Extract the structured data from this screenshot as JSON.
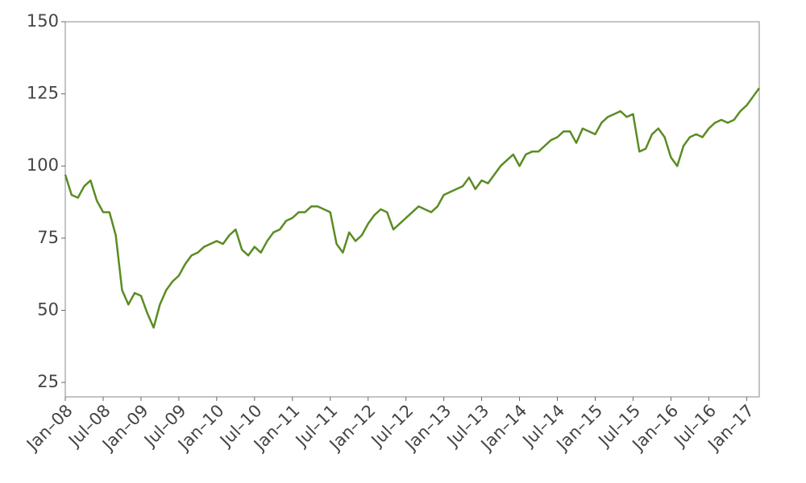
{
  "chart_data": {
    "type": "line",
    "x": [
      "2008-01",
      "2008-02",
      "2008-03",
      "2008-04",
      "2008-05",
      "2008-06",
      "2008-07",
      "2008-08",
      "2008-09",
      "2008-10",
      "2008-11",
      "2008-12",
      "2009-01",
      "2009-02",
      "2009-03",
      "2009-04",
      "2009-05",
      "2009-06",
      "2009-07",
      "2009-08",
      "2009-09",
      "2009-10",
      "2009-11",
      "2009-12",
      "2010-01",
      "2010-02",
      "2010-03",
      "2010-04",
      "2010-05",
      "2010-06",
      "2010-07",
      "2010-08",
      "2010-09",
      "2010-10",
      "2010-11",
      "2010-12",
      "2011-01",
      "2011-02",
      "2011-03",
      "2011-04",
      "2011-05",
      "2011-06",
      "2011-07",
      "2011-08",
      "2011-09",
      "2011-10",
      "2011-11",
      "2011-12",
      "2012-01",
      "2012-02",
      "2012-03",
      "2012-04",
      "2012-05",
      "2012-06",
      "2012-07",
      "2012-08",
      "2012-09",
      "2012-10",
      "2012-11",
      "2012-12",
      "2013-01",
      "2013-02",
      "2013-03",
      "2013-04",
      "2013-05",
      "2013-06",
      "2013-07",
      "2013-08",
      "2013-09",
      "2013-10",
      "2013-11",
      "2013-12",
      "2014-01",
      "2014-02",
      "2014-03",
      "2014-04",
      "2014-05",
      "2014-06",
      "2014-07",
      "2014-08",
      "2014-09",
      "2014-10",
      "2014-11",
      "2014-12",
      "2015-01",
      "2015-02",
      "2015-03",
      "2015-04",
      "2015-05",
      "2015-06",
      "2015-07",
      "2015-08",
      "2015-09",
      "2015-10",
      "2015-11",
      "2015-12",
      "2016-01",
      "2016-02",
      "2016-03",
      "2016-04",
      "2016-05",
      "2016-06",
      "2016-07",
      "2016-08",
      "2016-09",
      "2016-10",
      "2016-11",
      "2016-12",
      "2017-01",
      "2017-02",
      "2017-03"
    ],
    "series": [
      {
        "color": "#5a8c23",
        "values": [
          97,
          90,
          89,
          93,
          95,
          88,
          84,
          84,
          76,
          57,
          52,
          56,
          55,
          49,
          44,
          52,
          57,
          60,
          62,
          66,
          69,
          70,
          72,
          73,
          74,
          73,
          76,
          78,
          71,
          69,
          72,
          70,
          74,
          77,
          78,
          81,
          82,
          84,
          84,
          86,
          86,
          85,
          84,
          73,
          70,
          77,
          74,
          76,
          80,
          83,
          85,
          84,
          78,
          80,
          82,
          84,
          86,
          85,
          84,
          86,
          90,
          91,
          92,
          93,
          96,
          92,
          95,
          94,
          97,
          100,
          102,
          104,
          100,
          104,
          105,
          105,
          107,
          109,
          110,
          112,
          112,
          108,
          113,
          112,
          111,
          115,
          117,
          118,
          119,
          117,
          118,
          105,
          106,
          111,
          113,
          110,
          103,
          100,
          107,
          110,
          111,
          110,
          113,
          115,
          116,
          115,
          116,
          119,
          121,
          124,
          127
        ]
      }
    ],
    "xlim": [
      "2008-01",
      "2017-03"
    ],
    "xticks": [
      {
        "value": "2008-01",
        "label": "Jan–08"
      },
      {
        "value": "2008-07",
        "label": "Jul–08"
      },
      {
        "value": "2009-01",
        "label": "Jan–09"
      },
      {
        "value": "2009-07",
        "label": "Jul–09"
      },
      {
        "value": "2010-01",
        "label": "Jan–10"
      },
      {
        "value": "2010-07",
        "label": "Jul–10"
      },
      {
        "value": "2011-01",
        "label": "Jan–11"
      },
      {
        "value": "2011-07",
        "label": "Jul–11"
      },
      {
        "value": "2012-01",
        "label": "Jan–12"
      },
      {
        "value": "2012-07",
        "label": "Jul–12"
      },
      {
        "value": "2013-01",
        "label": "Jan–13"
      },
      {
        "value": "2013-07",
        "label": "Jul–13"
      },
      {
        "value": "2014-01",
        "label": "Jan–14"
      },
      {
        "value": "2014-07",
        "label": "Jul–14"
      },
      {
        "value": "2015-01",
        "label": "Jan–15"
      },
      {
        "value": "2015-07",
        "label": "Jul–15"
      },
      {
        "value": "2016-01",
        "label": "Jan–16"
      },
      {
        "value": "2016-07",
        "label": "Jul–16"
      },
      {
        "value": "2017-01",
        "label": "Jan–17"
      }
    ],
    "ylim": [
      20,
      150
    ],
    "yticks": [
      25,
      50,
      75,
      100,
      125,
      150
    ],
    "grid": false
  }
}
